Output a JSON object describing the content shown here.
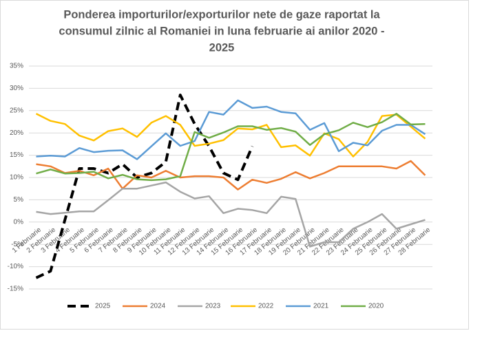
{
  "chart_data": {
    "type": "line",
    "title_lines": [
      "Ponderea importurilor/exporturilor nete de gaze raportat la",
      "consumul zilnic al Romaniei in luna februarie ai anilor 2020 -",
      "2025"
    ],
    "categories": [
      "1 Februarie",
      "2 Februarie",
      "3 Februarie",
      "4 Februarie",
      "5 Februarie",
      "6 Februarie",
      "7 Februarie",
      "8 Februarie",
      "9 Februarie",
      "10 Februarie",
      "11 Februarie",
      "12 Februarie",
      "13 Februarie",
      "14 Februarie",
      "15 Februarie",
      "16 Februarie",
      "17 Februarie",
      "18 Februarie",
      "19 Februarie",
      "20 Februarie",
      "21 Februarie",
      "22 Februarie",
      "23 Februarie",
      "24 Februarie",
      "25 Februarie",
      "26 Februarie",
      "27 Februarie",
      "28 Februarie"
    ],
    "ylim": [
      -15,
      35
    ],
    "yticks": [
      {
        "value": -15,
        "label": "-15%"
      },
      {
        "value": -10,
        "label": "-10%"
      },
      {
        "value": -5,
        "label": "-5%"
      },
      {
        "value": 0,
        "label": "0%"
      },
      {
        "value": 5,
        "label": "5%"
      },
      {
        "value": 10,
        "label": "10%"
      },
      {
        "value": 15,
        "label": "15%"
      },
      {
        "value": 20,
        "label": "20%"
      },
      {
        "value": 25,
        "label": "25%"
      },
      {
        "value": 30,
        "label": "30%"
      },
      {
        "value": 35,
        "label": "35%"
      }
    ],
    "grid": true,
    "legend": "bottom",
    "series": [
      {
        "name": "2025",
        "color": "#000000",
        "line_style": "dashed",
        "values": [
          -12.5,
          -11,
          0.5,
          12,
          12,
          11,
          13,
          10,
          11,
          13.5,
          28.5,
          22,
          17,
          11,
          9.5,
          17,
          null,
          null,
          null,
          null,
          null,
          null,
          null,
          null,
          null,
          null,
          null,
          null
        ]
      },
      {
        "name": "2024",
        "color": "#ED7D31",
        "values": [
          13,
          12.5,
          11,
          11.5,
          10.5,
          12,
          7.5,
          10.5,
          10,
          11.5,
          10,
          10.3,
          10.3,
          10,
          7.3,
          9.5,
          8.8,
          9.7,
          11.2,
          9.8,
          11,
          12.5,
          12.5,
          12.5,
          12.5,
          12,
          13.7,
          10.5
        ]
      },
      {
        "name": "2023",
        "color": "#A5A5A5",
        "values": [
          2.3,
          1.8,
          2.1,
          2.4,
          2.4,
          4.9,
          7.5,
          7.5,
          8.2,
          8.9,
          6.8,
          5.3,
          5.8,
          2,
          3,
          2.7,
          2,
          5.7,
          5.2,
          -5.5,
          -4.5,
          -4.5,
          -1.5,
          0,
          1.8,
          -1.5,
          -0.5,
          0.5
        ]
      },
      {
        "name": "2022",
        "color": "#FFC000",
        "values": [
          24.3,
          22.7,
          22,
          19.4,
          18.3,
          20.4,
          21,
          19.1,
          22.3,
          23.8,
          21.8,
          17.1,
          17.6,
          18.4,
          21,
          20.8,
          21.8,
          16.8,
          17.2,
          14.9,
          19.9,
          18.6,
          14.7,
          18,
          23.8,
          24.1,
          21.4,
          18.7
        ]
      },
      {
        "name": "2021",
        "color": "#5B9BD5",
        "values": [
          14.7,
          14.9,
          14.7,
          16.6,
          15.7,
          16,
          16.1,
          14.1,
          17,
          19.9,
          17.1,
          18.2,
          24.7,
          24.1,
          27.3,
          25.6,
          25.9,
          24.7,
          24.4,
          20.7,
          22.2,
          15.9,
          17.8,
          17.2,
          20.5,
          21.8,
          21.8,
          19.7
        ]
      },
      {
        "name": "2020",
        "color": "#70AD47",
        "values": [
          10.9,
          11.8,
          10.9,
          11,
          11.3,
          9.8,
          10.6,
          9.6,
          9.4,
          9.6,
          10.3,
          20.2,
          18.9,
          20.1,
          21.5,
          21.5,
          20.7,
          21.1,
          20.3,
          17.3,
          19.7,
          20.6,
          22.3,
          21.3,
          22.4,
          24.3,
          21.9,
          22
        ]
      }
    ]
  }
}
